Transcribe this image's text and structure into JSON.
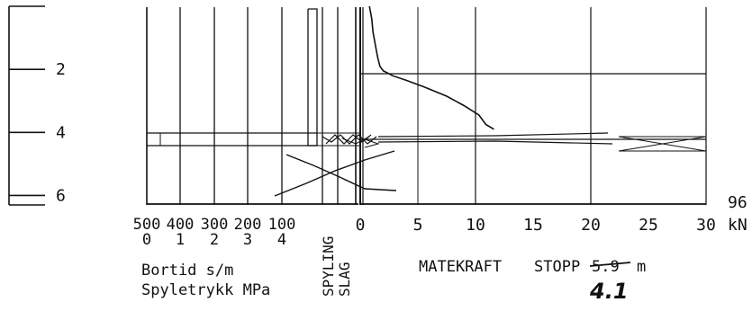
{
  "chart_data": {
    "type": "line",
    "depth_axis": {
      "ticks": [
        {
          "value": 2,
          "label": "2"
        },
        {
          "value": 4,
          "label": "4"
        },
        {
          "value": 6,
          "label": "6"
        }
      ],
      "range": [
        0,
        6.3
      ],
      "direction": "down"
    },
    "left_panel": {
      "top_scale": {
        "label": "Bortid s/m",
        "ticks": [
          "500",
          "400",
          "300",
          "200",
          "100"
        ],
        "values": [
          500,
          400,
          300,
          200,
          100
        ]
      },
      "bottom_scale": {
        "label": "Spyletrykk MPa",
        "ticks": [
          "0",
          "1",
          "2",
          "3",
          "4"
        ],
        "values": [
          0,
          1,
          2,
          3,
          4
        ]
      }
    },
    "middle_panel": {
      "labels": [
        "SPYLING",
        "SLAG"
      ]
    },
    "right_panel": {
      "xlabel": "MATEKRAFT",
      "unit": "kN",
      "xlim": [
        0,
        30
      ],
      "ticks": [
        "0",
        "5",
        "10",
        "15",
        "20",
        "25",
        "30"
      ],
      "tick_values": [
        0,
        5,
        10,
        15,
        20,
        25,
        30
      ],
      "extra_max_label": "96",
      "series": [
        {
          "points": [
            {
              "x": 0.8,
              "y": 0.0
            },
            {
              "x": 1.0,
              "y": 0.4
            },
            {
              "x": 1.1,
              "y": 0.8
            },
            {
              "x": 1.3,
              "y": 1.2
            },
            {
              "x": 1.5,
              "y": 1.6
            },
            {
              "x": 1.7,
              "y": 1.9
            },
            {
              "x": 2.0,
              "y": 2.05
            },
            {
              "x": 2.3,
              "y": 2.1
            },
            {
              "x": 2.8,
              "y": 2.2
            },
            {
              "x": 4.0,
              "y": 2.35
            },
            {
              "x": 5.5,
              "y": 2.55
            },
            {
              "x": 7.5,
              "y": 2.85
            },
            {
              "x": 9.0,
              "y": 3.15
            },
            {
              "x": 10.3,
              "y": 3.45
            },
            {
              "x": 10.9,
              "y": 3.75
            },
            {
              "x": 11.6,
              "y": 3.9
            }
          ]
        }
      ]
    },
    "stopp": {
      "label": "STOPP",
      "printed_value": "5.9",
      "handwritten_value": "4.1",
      "unit": "m"
    }
  }
}
